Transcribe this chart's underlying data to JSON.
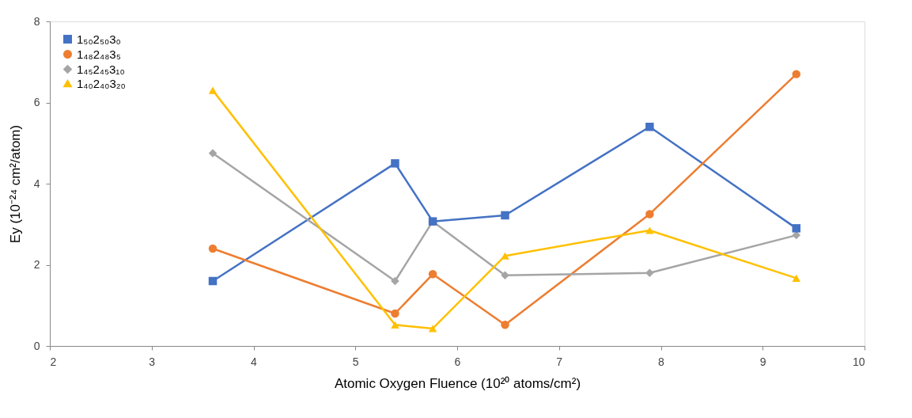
{
  "chart_data": {
    "type": "line",
    "xlabel": "Atomic Oxygen Fluence (10²⁰ atoms/cm²)",
    "ylabel": "Ey (10⁻²⁴ cm²/atom)",
    "x": [
      3.6,
      5.39,
      5.76,
      6.47,
      7.89,
      9.33
    ],
    "series": [
      {
        "name": "1₅₀2₅₀3₀",
        "color": "#4472c4",
        "marker": "square",
        "values": [
          1.6,
          4.5,
          3.07,
          3.22,
          5.4,
          2.9
        ]
      },
      {
        "name": "1₄₈2₄₈3₅",
        "color": "#ed7d31",
        "marker": "circle",
        "values": [
          2.4,
          0.8,
          1.77,
          0.52,
          3.25,
          6.7
        ]
      },
      {
        "name": "1₄₅2₄₅3₁₀",
        "color": "#a5a5a5",
        "marker": "diamond",
        "values": [
          4.75,
          1.6,
          3.07,
          1.74,
          1.8,
          2.73
        ]
      },
      {
        "name": "1₄₀2₄₀3₂₀",
        "color": "#ffc000",
        "marker": "triangle",
        "values": [
          6.3,
          0.52,
          0.43,
          2.22,
          2.85,
          1.67
        ]
      }
    ],
    "xlim": [
      2,
      10
    ],
    "xticks": [
      2,
      3,
      4,
      5,
      6,
      7,
      8,
      9,
      10
    ],
    "ylim": [
      0,
      8
    ],
    "yticks": [
      0,
      2,
      4,
      6,
      8
    ],
    "grid": false,
    "legend": "top left",
    "line_style": "solid"
  }
}
